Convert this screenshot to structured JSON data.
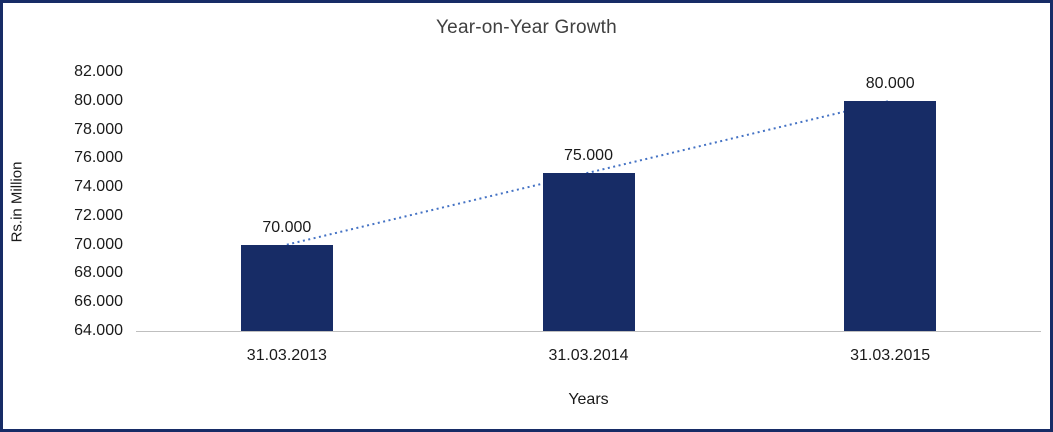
{
  "chart_data": {
    "type": "bar",
    "title": "Year-on-Year Growth",
    "xlabel": "Years",
    "ylabel": "Rs.in Million",
    "categories": [
      "31.03.2013",
      "31.03.2014",
      "31.03.2015"
    ],
    "values": [
      70,
      75,
      80
    ],
    "value_labels": [
      "70.000",
      "75.000",
      "80.000"
    ],
    "ylim": [
      64,
      82
    ],
    "ytick_step": 2,
    "ytick_labels": [
      "64.000",
      "66.000",
      "68.000",
      "70.000",
      "72.000",
      "74.000",
      "76.000",
      "78.000",
      "80.000",
      "82.000"
    ],
    "grid": "off",
    "legend": "none",
    "trendline": {
      "shape": "linear",
      "style": "dotted"
    },
    "colors": {
      "bar": "#172C66",
      "trend": "#4472C4",
      "border": "#172C66",
      "axis": "#BFBFBF",
      "title_text": "#404040",
      "text": "#1a1a1a"
    }
  }
}
